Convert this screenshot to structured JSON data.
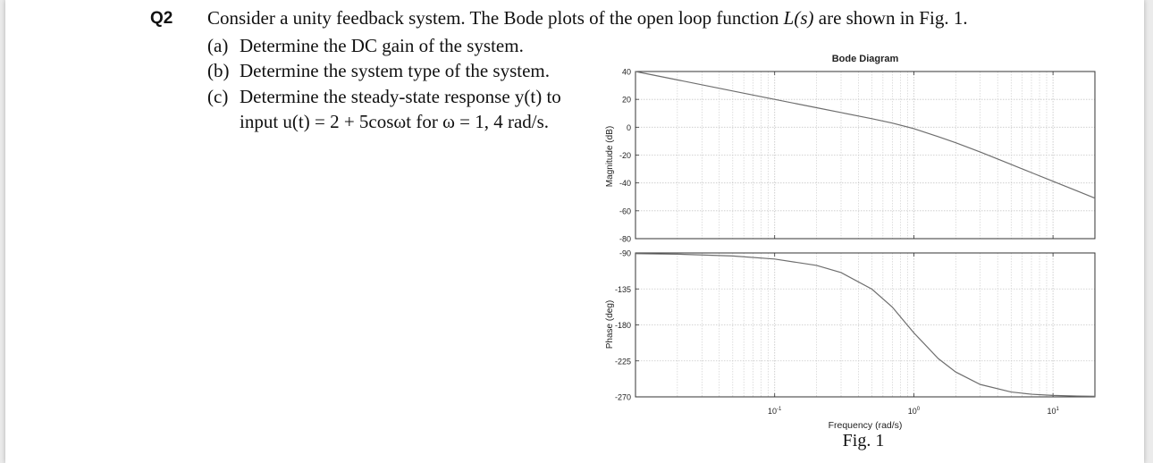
{
  "question": {
    "number": "Q2",
    "stem": "Consider a unity feedback system. The Bode plots of the open loop function L(s) are shown in Fig. 1.",
    "stem_before": "Consider a unity feedback system. The Bode plots of the open loop function ",
    "stem_math": "L(s)",
    "stem_after": " are shown in Fig. 1.",
    "parts": [
      {
        "label": "(a)",
        "text": "Determine the DC gain of the system."
      },
      {
        "label": "(b)",
        "text": "Determine the system type of the system."
      },
      {
        "label": "(c)",
        "text": "Determine the steady-state response y(t) to",
        "continuation": "input u(t) = 2 + 5cosωt for ω = 1,  4 rad/s."
      }
    ]
  },
  "figure": {
    "caption": "Fig. 1",
    "title": "Bode Diagram",
    "xlabel": "Frequency  (rad/s)",
    "x_ticks": [
      {
        "base": "10",
        "exp": "-1",
        "value": 0.1
      },
      {
        "base": "10",
        "exp": "0",
        "value": 1
      },
      {
        "base": "10",
        "exp": "1",
        "value": 10
      }
    ],
    "line_color": "#6e6e6e",
    "grid_color": "#c8c8c8"
  },
  "chart_data": [
    {
      "type": "line",
      "title": "Bode Diagram",
      "xlabel": "Frequency  (rad/s)",
      "ylabel": "Magnitude (dB)",
      "xscale": "log",
      "xlim": [
        0.01,
        20
      ],
      "ylim": [
        -80,
        40
      ],
      "yticks": [
        "40",
        "20",
        "0",
        "-20",
        "-40",
        "-60",
        "-80"
      ],
      "grid": true,
      "x": [
        0.01,
        0.02,
        0.05,
        0.1,
        0.2,
        0.3,
        0.5,
        0.7,
        1,
        1.5,
        2,
        3,
        5,
        7,
        10,
        15,
        20
      ],
      "y": [
        40,
        34,
        26,
        20,
        14,
        10.5,
        6.1,
        3,
        -1,
        -6.8,
        -11.1,
        -17.8,
        -26.7,
        -32.6,
        -38.8,
        -45.9,
        -50.9
      ]
    },
    {
      "type": "line",
      "xlabel": "Frequency  (rad/s)",
      "ylabel": "Phase (deg)",
      "xscale": "log",
      "xlim": [
        0.01,
        20
      ],
      "ylim": [
        -270,
        -90
      ],
      "yticks": [
        "-90",
        "-135",
        "-180",
        "-225",
        "-270"
      ],
      "grid": true,
      "x": [
        0.01,
        0.02,
        0.05,
        0.1,
        0.2,
        0.3,
        0.5,
        0.7,
        1,
        1.5,
        2,
        3,
        5,
        7,
        10,
        15,
        20
      ],
      "y": [
        -90.8,
        -91.5,
        -93.8,
        -97.6,
        -105.6,
        -114.5,
        -135.3,
        -157.7,
        -189.9,
        -222.2,
        -238.9,
        -254.5,
        -263.9,
        -266.7,
        -268.2,
        -269.0,
        -269.3
      ]
    }
  ]
}
